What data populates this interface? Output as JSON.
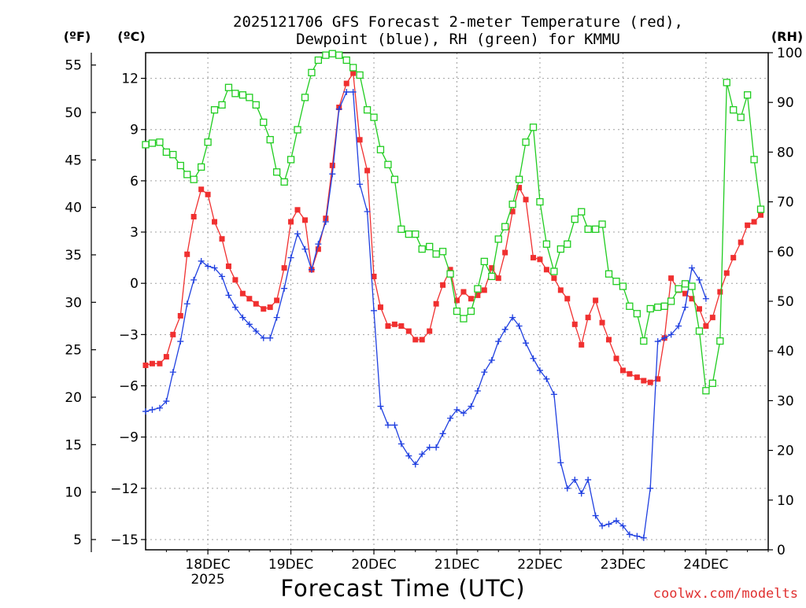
{
  "title_line1": "2025121706 GFS Forecast 2-meter Temperature (red),",
  "title_line2": "Dewpoint (blue), RH (green) for KMMU",
  "units": {
    "fahrenheit": "(ºF)",
    "celsius": "(ºC)",
    "rh": "(RH)"
  },
  "xlabel": "Forecast Time (UTC)",
  "credit": "coolwx.com/modelts",
  "colors": {
    "temperature": "#f03030",
    "dewpoint": "#2040e0",
    "rh": "#20cc20",
    "grid": "#a0a0a0"
  },
  "chart_data": {
    "type": "line",
    "x_unit": "days since 18DEC 00Z",
    "xlim": [
      -0.75,
      6.75
    ],
    "x_ticks": [
      {
        "x": 0,
        "label": "18DEC",
        "sublabel": "2025"
      },
      {
        "x": 1,
        "label": "19DEC"
      },
      {
        "x": 2,
        "label": "20DEC"
      },
      {
        "x": 3,
        "label": "21DEC"
      },
      {
        "x": 4,
        "label": "22DEC"
      },
      {
        "x": 5,
        "label": "23DEC"
      },
      {
        "x": 6,
        "label": "24DEC"
      }
    ],
    "y_celsius": {
      "ylim": [
        -15.6,
        13.5
      ],
      "ticks": [
        -15,
        -12,
        -9,
        -6,
        -3,
        0,
        3,
        6,
        9,
        12
      ],
      "labels": [
        "−15",
        "−12",
        "−9",
        "−6",
        "−3",
        "0",
        "3",
        "6",
        "9",
        "12"
      ]
    },
    "y_fahrenheit": {
      "ticks": [
        5,
        10,
        15,
        20,
        25,
        30,
        35,
        40,
        45,
        50,
        55
      ],
      "labels": [
        "5",
        "10",
        "15",
        "20",
        "25",
        "30",
        "35",
        "40",
        "45",
        "50",
        "55"
      ]
    },
    "y_rh": {
      "ylim": [
        0,
        100
      ],
      "ticks": [
        0,
        10,
        20,
        30,
        40,
        50,
        60,
        70,
        80,
        90,
        100
      ],
      "labels": [
        "0",
        "10",
        "20",
        "30",
        "40",
        "50",
        "60",
        "70",
        "80",
        "90",
        "100"
      ]
    },
    "series": [
      {
        "name": "Temperature",
        "axis": "celsius",
        "marker": "square",
        "points": [
          [
            -0.75,
            -4.8
          ],
          [
            -0.67,
            -4.7
          ],
          [
            -0.58,
            -4.7
          ],
          [
            -0.5,
            -4.3
          ],
          [
            -0.42,
            -3.0
          ],
          [
            -0.33,
            -1.9
          ],
          [
            -0.25,
            1.7
          ],
          [
            -0.17,
            3.9
          ],
          [
            -0.08,
            5.5
          ],
          [
            0,
            5.2
          ],
          [
            0.08,
            3.6
          ],
          [
            0.17,
            2.6
          ],
          [
            0.25,
            1.0
          ],
          [
            0.33,
            0.2
          ],
          [
            0.42,
            -0.6
          ],
          [
            0.5,
            -0.9
          ],
          [
            0.58,
            -1.2
          ],
          [
            0.67,
            -1.5
          ],
          [
            0.75,
            -1.4
          ],
          [
            0.83,
            -1.0
          ],
          [
            0.92,
            0.9
          ],
          [
            1.0,
            3.6
          ],
          [
            1.08,
            4.3
          ],
          [
            1.17,
            3.7
          ],
          [
            1.25,
            0.8
          ],
          [
            1.33,
            2.0
          ],
          [
            1.42,
            3.8
          ],
          [
            1.5,
            6.9
          ],
          [
            1.58,
            10.3
          ],
          [
            1.67,
            11.7
          ],
          [
            1.75,
            12.3
          ],
          [
            1.83,
            8.4
          ],
          [
            1.92,
            6.6
          ],
          [
            2.0,
            0.4
          ],
          [
            2.08,
            -1.4
          ],
          [
            2.17,
            -2.5
          ],
          [
            2.25,
            -2.4
          ],
          [
            2.33,
            -2.5
          ],
          [
            2.42,
            -2.8
          ],
          [
            2.5,
            -3.3
          ],
          [
            2.58,
            -3.3
          ],
          [
            2.67,
            -2.8
          ],
          [
            2.75,
            -1.2
          ],
          [
            2.83,
            -0.1
          ],
          [
            2.92,
            0.8
          ],
          [
            3.0,
            -1.0
          ],
          [
            3.08,
            -0.5
          ],
          [
            3.17,
            -0.9
          ],
          [
            3.25,
            -0.7
          ],
          [
            3.33,
            -0.4
          ],
          [
            3.42,
            0.9
          ],
          [
            3.5,
            0.3
          ],
          [
            3.58,
            1.8
          ],
          [
            3.67,
            4.2
          ],
          [
            3.75,
            5.6
          ],
          [
            3.83,
            4.9
          ],
          [
            3.92,
            1.5
          ],
          [
            4.0,
            1.4
          ],
          [
            4.08,
            0.8
          ],
          [
            4.17,
            0.3
          ],
          [
            4.25,
            -0.4
          ],
          [
            4.33,
            -0.9
          ],
          [
            4.42,
            -2.4
          ],
          [
            4.5,
            -3.6
          ],
          [
            4.58,
            -2.0
          ],
          [
            4.67,
            -1.0
          ],
          [
            4.75,
            -2.3
          ],
          [
            4.83,
            -3.3
          ],
          [
            4.92,
            -4.4
          ],
          [
            5.0,
            -5.1
          ],
          [
            5.08,
            -5.3
          ],
          [
            5.17,
            -5.5
          ],
          [
            5.25,
            -5.7
          ],
          [
            5.33,
            -5.8
          ],
          [
            5.42,
            -5.6
          ],
          [
            5.5,
            -3.2
          ],
          [
            5.58,
            0.3
          ],
          [
            5.67,
            -0.4
          ],
          [
            5.75,
            -0.6
          ],
          [
            5.83,
            -0.9
          ],
          [
            5.92,
            -1.5
          ],
          [
            6.0,
            -2.5
          ],
          [
            6.08,
            -2.0
          ],
          [
            6.17,
            -0.5
          ],
          [
            6.25,
            0.6
          ],
          [
            6.33,
            1.5
          ],
          [
            6.42,
            2.4
          ],
          [
            6.5,
            3.4
          ],
          [
            6.58,
            3.6
          ],
          [
            6.66,
            4.0
          ]
        ]
      },
      {
        "name": "Dewpoint",
        "axis": "celsius",
        "marker": "plus",
        "points": [
          [
            -0.75,
            -7.5
          ],
          [
            -0.67,
            -7.4
          ],
          [
            -0.58,
            -7.3
          ],
          [
            -0.5,
            -6.9
          ],
          [
            -0.42,
            -5.2
          ],
          [
            -0.33,
            -3.4
          ],
          [
            -0.25,
            -1.2
          ],
          [
            -0.17,
            0.2
          ],
          [
            -0.08,
            1.3
          ],
          [
            0,
            1.0
          ],
          [
            0.08,
            0.9
          ],
          [
            0.17,
            0.4
          ],
          [
            0.25,
            -0.7
          ],
          [
            0.33,
            -1.4
          ],
          [
            0.42,
            -2.0
          ],
          [
            0.5,
            -2.4
          ],
          [
            0.58,
            -2.8
          ],
          [
            0.67,
            -3.2
          ],
          [
            0.75,
            -3.2
          ],
          [
            0.83,
            -2.0
          ],
          [
            0.92,
            -0.3
          ],
          [
            1.0,
            1.5
          ],
          [
            1.08,
            2.9
          ],
          [
            1.17,
            2.0
          ],
          [
            1.25,
            0.8
          ],
          [
            1.33,
            2.3
          ],
          [
            1.42,
            3.6
          ],
          [
            1.5,
            6.4
          ],
          [
            1.58,
            10.2
          ],
          [
            1.67,
            11.2
          ],
          [
            1.75,
            11.2
          ],
          [
            1.83,
            5.8
          ],
          [
            1.92,
            4.2
          ],
          [
            2.0,
            -1.6
          ],
          [
            2.08,
            -7.2
          ],
          [
            2.17,
            -8.3
          ],
          [
            2.25,
            -8.3
          ],
          [
            2.33,
            -9.4
          ],
          [
            2.42,
            -10.1
          ],
          [
            2.5,
            -10.6
          ],
          [
            2.58,
            -10.0
          ],
          [
            2.67,
            -9.6
          ],
          [
            2.75,
            -9.6
          ],
          [
            2.83,
            -8.8
          ],
          [
            2.92,
            -7.9
          ],
          [
            3.0,
            -7.4
          ],
          [
            3.08,
            -7.6
          ],
          [
            3.17,
            -7.2
          ],
          [
            3.25,
            -6.3
          ],
          [
            3.33,
            -5.2
          ],
          [
            3.42,
            -4.5
          ],
          [
            3.5,
            -3.4
          ],
          [
            3.58,
            -2.7
          ],
          [
            3.67,
            -2.0
          ],
          [
            3.75,
            -2.5
          ],
          [
            3.83,
            -3.5
          ],
          [
            3.92,
            -4.4
          ],
          [
            4.0,
            -5.1
          ],
          [
            4.08,
            -5.6
          ],
          [
            4.17,
            -6.5
          ],
          [
            4.25,
            -10.5
          ],
          [
            4.33,
            -12.0
          ],
          [
            4.42,
            -11.5
          ],
          [
            4.5,
            -12.3
          ],
          [
            4.58,
            -11.5
          ],
          [
            4.67,
            -13.6
          ],
          [
            4.75,
            -14.2
          ],
          [
            4.83,
            -14.1
          ],
          [
            4.92,
            -13.9
          ],
          [
            5.0,
            -14.2
          ],
          [
            5.08,
            -14.7
          ],
          [
            5.17,
            -14.8
          ],
          [
            5.25,
            -14.9
          ],
          [
            5.33,
            -12.0
          ],
          [
            5.42,
            -3.4
          ],
          [
            5.5,
            -3.2
          ],
          [
            5.58,
            -3.0
          ],
          [
            5.67,
            -2.5
          ],
          [
            5.75,
            -1.4
          ],
          [
            5.83,
            0.9
          ],
          [
            5.92,
            0.2
          ],
          [
            6.0,
            -0.9
          ]
        ]
      },
      {
        "name": "RH",
        "axis": "rh",
        "marker": "open-square",
        "points": [
          [
            -0.75,
            81.5
          ],
          [
            -0.67,
            81.8
          ],
          [
            -0.58,
            82.0
          ],
          [
            -0.5,
            80.0
          ],
          [
            -0.42,
            79.5
          ],
          [
            -0.33,
            77.3
          ],
          [
            -0.25,
            75.5
          ],
          [
            -0.17,
            74.5
          ],
          [
            -0.08,
            77.0
          ],
          [
            0,
            82.0
          ],
          [
            0.08,
            88.5
          ],
          [
            0.17,
            89.5
          ],
          [
            0.25,
            93.0
          ],
          [
            0.33,
            91.8
          ],
          [
            0.42,
            91.5
          ],
          [
            0.5,
            91.0
          ],
          [
            0.58,
            89.5
          ],
          [
            0.67,
            86.0
          ],
          [
            0.75,
            82.5
          ],
          [
            0.83,
            76.0
          ],
          [
            0.92,
            74.0
          ],
          [
            1.0,
            78.5
          ],
          [
            1.08,
            84.5
          ],
          [
            1.17,
            91.0
          ],
          [
            1.25,
            96.0
          ],
          [
            1.33,
            98.5
          ],
          [
            1.42,
            99.5
          ],
          [
            1.5,
            99.8
          ],
          [
            1.58,
            99.5
          ],
          [
            1.67,
            98.5
          ],
          [
            1.75,
            97.0
          ],
          [
            1.83,
            95.5
          ],
          [
            1.92,
            88.5
          ],
          [
            2.0,
            87.0
          ],
          [
            2.08,
            80.5
          ],
          [
            2.17,
            77.5
          ],
          [
            2.25,
            74.5
          ],
          [
            2.33,
            64.5
          ],
          [
            2.42,
            63.5
          ],
          [
            2.5,
            63.5
          ],
          [
            2.58,
            60.5
          ],
          [
            2.67,
            61.0
          ],
          [
            2.75,
            59.5
          ],
          [
            2.83,
            60.0
          ],
          [
            2.92,
            55.5
          ],
          [
            3.0,
            48.0
          ],
          [
            3.08,
            46.5
          ],
          [
            3.17,
            48.0
          ],
          [
            3.25,
            52.5
          ],
          [
            3.33,
            58.0
          ],
          [
            3.42,
            55.0
          ],
          [
            3.5,
            62.5
          ],
          [
            3.58,
            65.0
          ],
          [
            3.67,
            69.5
          ],
          [
            3.75,
            74.5
          ],
          [
            3.83,
            82.0
          ],
          [
            3.92,
            85.0
          ],
          [
            4.0,
            70.0
          ],
          [
            4.08,
            61.5
          ],
          [
            4.17,
            56.0
          ],
          [
            4.25,
            60.5
          ],
          [
            4.33,
            61.5
          ],
          [
            4.42,
            66.5
          ],
          [
            4.5,
            68.0
          ],
          [
            4.58,
            64.5
          ],
          [
            4.67,
            64.5
          ],
          [
            4.75,
            65.5
          ],
          [
            4.83,
            55.5
          ],
          [
            4.92,
            54.0
          ],
          [
            5.0,
            53.0
          ],
          [
            5.08,
            49.0
          ],
          [
            5.17,
            47.5
          ],
          [
            5.25,
            42.0
          ],
          [
            5.33,
            48.5
          ],
          [
            5.42,
            48.8
          ],
          [
            5.5,
            49.0
          ],
          [
            5.58,
            50.0
          ],
          [
            5.67,
            52.5
          ],
          [
            5.75,
            53.5
          ],
          [
            5.83,
            53.0
          ],
          [
            5.92,
            44.0
          ],
          [
            6.0,
            32.0
          ],
          [
            6.08,
            33.5
          ],
          [
            6.17,
            42.0
          ],
          [
            6.25,
            94.0
          ],
          [
            6.33,
            88.5
          ],
          [
            6.42,
            87.0
          ],
          [
            6.5,
            91.5
          ],
          [
            6.58,
            78.5
          ],
          [
            6.66,
            68.5
          ]
        ]
      }
    ]
  }
}
